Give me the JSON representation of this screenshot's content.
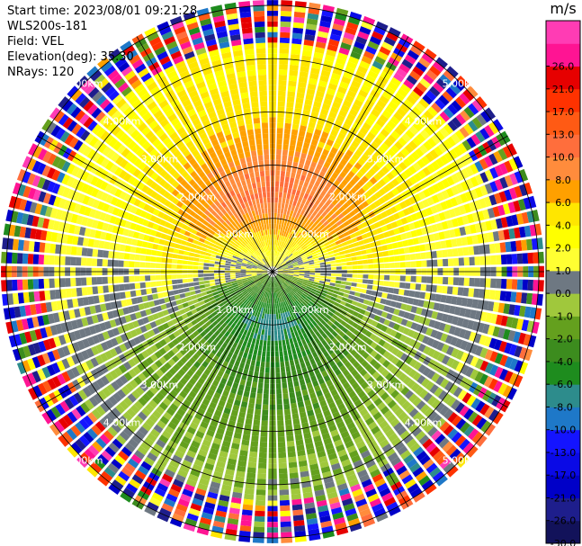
{
  "info": {
    "start_time": "Start time: 2023/08/01 09:21:28",
    "site": "WLS200s-181",
    "field": "Field: VEL",
    "elevation": "Elevation(deg): 35.30",
    "nrays": "NRays: 120"
  },
  "chart_data": {
    "type": "heatmap",
    "subtype": "radar-ppi",
    "field": "VEL",
    "units": "m/s",
    "nrays": 120,
    "ring_ranges_km": [
      1.0,
      2.0,
      3.0,
      4.0,
      5.0
    ],
    "ring_labels": [
      "1.00km",
      "2.00km",
      "3.00km",
      "4.00km",
      "5.00km"
    ],
    "max_range_km": 5.1,
    "spoke_angles_deg": [
      0,
      30,
      60,
      90,
      120,
      150,
      180,
      210,
      240,
      270,
      300,
      330
    ],
    "colorbar": {
      "title": "m/s",
      "levels": [
        -30.0,
        -26.0,
        -21.0,
        -17.0,
        -13.0,
        -10.0,
        -8.0,
        -6.0,
        -4.0,
        -2.0,
        -1.0,
        0.0,
        1.0,
        2.0,
        4.0,
        6.0,
        8.0,
        10.0,
        13.0,
        17.0,
        21.0,
        26.0
      ],
      "labels": [
        "-30.0",
        "-26.0",
        "-21.0",
        "-17.0",
        "-13.0",
        "-10.0",
        "-8.0",
        "-6.0",
        "-4.0",
        "-2.0",
        "-1.0",
        "0.0",
        "1.0",
        "2.0",
        "4.0",
        "6.0",
        "8.0",
        "10.0",
        "13.0",
        "17.0",
        "21.0",
        "26.0"
      ],
      "colors": [
        "#12125a",
        "#1e1e8c",
        "#0000c8",
        "#0a0ae6",
        "#1414ff",
        "#1e78c8",
        "#2d8c8c",
        "#1e8c1e",
        "#3c8c1e",
        "#64a01e",
        "#a0c83c",
        "#6e7882",
        "#ffff32",
        "#ffff00",
        "#ffe600",
        "#ffa000",
        "#ff8c3c",
        "#ff6e3c",
        "#ff5a14",
        "#ff3200",
        "#e60000",
        "#ff1493",
        "#ff3cb4"
      ]
    },
    "approx_profile_by_range": [
      {
        "range_km": 0.3,
        "north_mps": 1.0,
        "south_mps": -5.0
      },
      {
        "range_km": 1.0,
        "north_mps": 6.0,
        "south_mps": -9.0
      },
      {
        "range_km": 1.5,
        "north_mps": 9.0,
        "south_mps": -7.0
      },
      {
        "range_km": 2.0,
        "north_mps": 7.0,
        "south_mps": -5.0
      },
      {
        "range_km": 3.0,
        "north_mps": 3.0,
        "south_mps": -3.0
      },
      {
        "range_km": 4.0,
        "north_mps": 2.0,
        "south_mps": -1.5
      }
    ],
    "noise_beyond_km": 4.3
  }
}
